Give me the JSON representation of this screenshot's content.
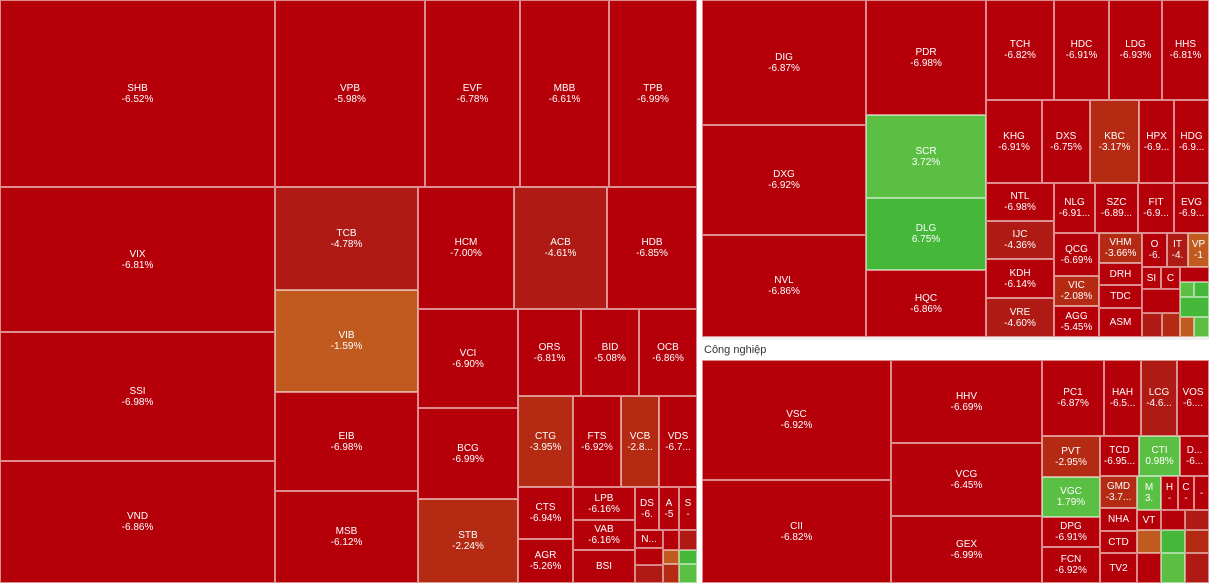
{
  "chart_data": {
    "type": "heatmap",
    "subtype": "treemap",
    "groups": [
      {
        "name": "",
        "tiles": [
          {
            "symbol": "SHB",
            "change": "-6.52%"
          },
          {
            "symbol": "VPB",
            "change": "-5.98%"
          },
          {
            "symbol": "EVF",
            "change": "-6.78%"
          },
          {
            "symbol": "MBB",
            "change": "-6.61%"
          },
          {
            "symbol": "TPB",
            "change": "-6.99%"
          },
          {
            "symbol": "VIX",
            "change": "-6.81%"
          },
          {
            "symbol": "TCB",
            "change": "-4.78%"
          },
          {
            "symbol": "HCM",
            "change": "-7.00%"
          },
          {
            "symbol": "ACB",
            "change": "-4.61%"
          },
          {
            "symbol": "HDB",
            "change": "-6.85%"
          },
          {
            "symbol": "VIB",
            "change": "-1.59%"
          },
          {
            "symbol": "SSI",
            "change": "-6.98%"
          },
          {
            "symbol": "VCI",
            "change": "-6.90%"
          },
          {
            "symbol": "ORS",
            "change": "-6.81%"
          },
          {
            "symbol": "BID",
            "change": "-5.08%"
          },
          {
            "symbol": "OCB",
            "change": "-6.86%"
          },
          {
            "symbol": "EIB",
            "change": "-6.98%"
          },
          {
            "symbol": "BCG",
            "change": "-6.99%"
          },
          {
            "symbol": "CTG",
            "change": "-3.95%"
          },
          {
            "symbol": "FTS",
            "change": "-6.92%"
          },
          {
            "symbol": "VCB",
            "change": "-2.8..."
          },
          {
            "symbol": "VDS",
            "change": "-6.7..."
          },
          {
            "symbol": "VND",
            "change": "-6.86%"
          },
          {
            "symbol": "MSB",
            "change": "-6.12%"
          },
          {
            "symbol": "STB",
            "change": "-2.24%"
          },
          {
            "symbol": "CTS",
            "change": "-6.94%"
          },
          {
            "symbol": "LPB",
            "change": "-6.16%"
          },
          {
            "symbol": "DS",
            "change": "-6."
          },
          {
            "symbol": "A",
            "change": "-5"
          },
          {
            "symbol": "S",
            "change": "-"
          },
          {
            "symbol": "VAB",
            "change": "-6.16%"
          },
          {
            "symbol": "N...",
            "change": ""
          },
          {
            "symbol": "AGR",
            "change": "-5.26%"
          },
          {
            "symbol": "BSI",
            "change": ""
          }
        ]
      },
      {
        "name": "",
        "tiles": [
          {
            "symbol": "DIG",
            "change": "-6.87%"
          },
          {
            "symbol": "PDR",
            "change": "-6.98%"
          },
          {
            "symbol": "TCH",
            "change": "-6.82%"
          },
          {
            "symbol": "HDC",
            "change": "-6.91%"
          },
          {
            "symbol": "LDG",
            "change": "-6.93%"
          },
          {
            "symbol": "HHS",
            "change": "-6.81%"
          },
          {
            "symbol": "DXG",
            "change": "-6.92%"
          },
          {
            "symbol": "SCR",
            "change": "3.72%"
          },
          {
            "symbol": "KHG",
            "change": "-6.91%"
          },
          {
            "symbol": "DXS",
            "change": "-6.75%"
          },
          {
            "symbol": "KBC",
            "change": "-3.17%"
          },
          {
            "symbol": "HPX",
            "change": "-6.9..."
          },
          {
            "symbol": "HDG",
            "change": "-6.9..."
          },
          {
            "symbol": "DLG",
            "change": "6.75%"
          },
          {
            "symbol": "NTL",
            "change": "-6.98%"
          },
          {
            "symbol": "NLG",
            "change": "-6.91..."
          },
          {
            "symbol": "SZC",
            "change": "-6.89..."
          },
          {
            "symbol": "FIT",
            "change": "-6.9..."
          },
          {
            "symbol": "EVG",
            "change": "-6.9..."
          },
          {
            "symbol": "NVL",
            "change": "-6.86%"
          },
          {
            "symbol": "IJC",
            "change": "-4.36%"
          },
          {
            "symbol": "QCG",
            "change": "-6.69%"
          },
          {
            "symbol": "VHM",
            "change": "-3.66%"
          },
          {
            "symbol": "O",
            "change": "-6."
          },
          {
            "symbol": "IT",
            "change": "-4."
          },
          {
            "symbol": "VP",
            "change": "-1"
          },
          {
            "symbol": "KDH",
            "change": "-6.14%"
          },
          {
            "symbol": "DRH",
            "change": ""
          },
          {
            "symbol": "SI",
            "change": ""
          },
          {
            "symbol": "C",
            "change": ""
          },
          {
            "symbol": "HQC",
            "change": "-6.86%"
          },
          {
            "symbol": "VIC",
            "change": "-2.08%"
          },
          {
            "symbol": "TDC",
            "change": ""
          },
          {
            "symbol": "VRE",
            "change": "-4.60%"
          },
          {
            "symbol": "AGG",
            "change": "-5.45%"
          },
          {
            "symbol": "ASM",
            "change": ""
          }
        ]
      },
      {
        "name": "Công nghiệp",
        "tiles": [
          {
            "symbol": "VSC",
            "change": "-6.92%"
          },
          {
            "symbol": "HHV",
            "change": "-6.69%"
          },
          {
            "symbol": "PC1",
            "change": "-6.87%"
          },
          {
            "symbol": "HAH",
            "change": "-6.5..."
          },
          {
            "symbol": "LCG",
            "change": "-4.6..."
          },
          {
            "symbol": "VOS",
            "change": "-6...."
          },
          {
            "symbol": "VCG",
            "change": "-6.45%"
          },
          {
            "symbol": "PVT",
            "change": "-2.95%"
          },
          {
            "symbol": "TCD",
            "change": "-6.95..."
          },
          {
            "symbol": "CTI",
            "change": "0.98%"
          },
          {
            "symbol": "D...",
            "change": "-6..."
          },
          {
            "symbol": "VGC",
            "change": "1.79%"
          },
          {
            "symbol": "GMD",
            "change": "-3.7..."
          },
          {
            "symbol": "M",
            "change": "3."
          },
          {
            "symbol": "H",
            "change": "-"
          },
          {
            "symbol": "C",
            "change": "-"
          },
          {
            "symbol": "-",
            "change": ""
          },
          {
            "symbol": "CII",
            "change": "-6.82%"
          },
          {
            "symbol": "NHA",
            "change": ""
          },
          {
            "symbol": "VT",
            "change": ""
          },
          {
            "symbol": "GEX",
            "change": "-6.99%"
          },
          {
            "symbol": "DPG",
            "change": "-6.91%"
          },
          {
            "symbol": "CTD",
            "change": ""
          },
          {
            "symbol": "FCN",
            "change": "-6.92%"
          },
          {
            "symbol": "TV2",
            "change": ""
          }
        ]
      }
    ],
    "color_scale": {
      "deep_red": "#b5000a",
      "red": "#b01a14",
      "orange_red": "#b52a13",
      "orange": "#c05a1f",
      "light_green": "#5abf42",
      "green": "#45b83a"
    }
  }
}
